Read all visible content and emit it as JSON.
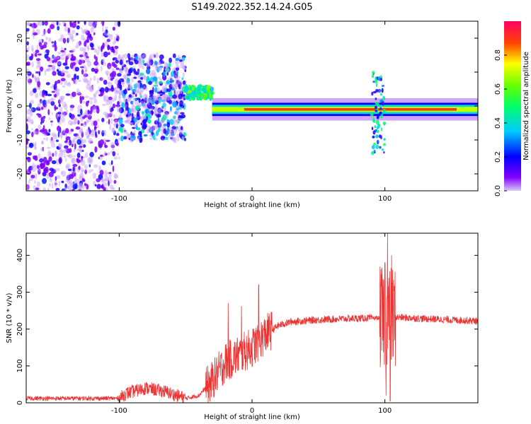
{
  "title": "S149.2022.352.14.24.G05",
  "colors": {
    "snr_line": "#ee3333",
    "spectrogram_low": "#cc99ff",
    "spectrogram_mid": "#00ddaa",
    "spectrogram_high": "#ff2222"
  },
  "chart_data": [
    {
      "type": "heatmap",
      "name": "spectrogram",
      "xlabel": "Height of straight line (km)",
      "ylabel": "Frequency (Hz)",
      "xlim": [
        -170,
        170
      ],
      "ylim": [
        -25,
        25
      ],
      "xticks": [
        -100,
        0,
        100
      ],
      "yticks": [
        -20,
        -10,
        0,
        10,
        20
      ],
      "colorbar": {
        "label": "Normalized spectral amplitude",
        "range": [
          0.0,
          1.0
        ],
        "ticks": [
          0.0,
          0.2,
          0.4,
          0.6,
          0.8
        ],
        "colormap": "hsv-rainbow (magenta-violet-blue-cyan-green-yellow-red)"
      },
      "features": [
        {
          "x_range": [
            -170,
            -100
          ],
          "freq_range": [
            -25,
            25
          ],
          "amplitude": 0.15,
          "pattern": "scattered"
        },
        {
          "x_range": [
            -100,
            -50
          ],
          "freq_range": [
            -10,
            15
          ],
          "amplitude": 0.3,
          "pattern": "scattered-dense"
        },
        {
          "x_range": [
            -50,
            -30
          ],
          "freq_range": [
            2,
            6
          ],
          "amplitude": 0.55,
          "pattern": "band"
        },
        {
          "x_range": [
            -30,
            170
          ],
          "freq_center": -1,
          "freq_halfwidth": 1.5,
          "amplitude": 0.9,
          "pattern": "narrow-band"
        },
        {
          "x_range": [
            90,
            100
          ],
          "freq_range": [
            -14,
            10
          ],
          "amplitude": 0.4,
          "pattern": "vertical-burst"
        }
      ]
    },
    {
      "type": "line",
      "name": "snr",
      "xlabel": "Height of straight line (km)",
      "ylabel": "SNR (10 * v/v)",
      "xlim": [
        -170,
        170
      ],
      "ylim": [
        0,
        460
      ],
      "xticks": [
        -100,
        0,
        100
      ],
      "yticks": [
        0,
        100,
        200,
        300,
        400
      ],
      "profile": [
        {
          "x": -170,
          "y": 12
        },
        {
          "x": -100,
          "y": 12
        },
        {
          "x": -95,
          "y": 25
        },
        {
          "x": -80,
          "y": 40
        },
        {
          "x": -65,
          "y": 30
        },
        {
          "x": -50,
          "y": 12
        },
        {
          "x": -40,
          "y": 20
        },
        {
          "x": -30,
          "y": 60
        },
        {
          "x": -20,
          "y": 110
        },
        {
          "x": -10,
          "y": 130
        },
        {
          "x": 0,
          "y": 150
        },
        {
          "x": 10,
          "y": 185
        },
        {
          "x": 20,
          "y": 210
        },
        {
          "x": 30,
          "y": 220
        },
        {
          "x": 50,
          "y": 225
        },
        {
          "x": 70,
          "y": 228
        },
        {
          "x": 90,
          "y": 230
        },
        {
          "x": 100,
          "y": 230
        },
        {
          "x": 110,
          "y": 232
        },
        {
          "x": 130,
          "y": 228
        },
        {
          "x": 150,
          "y": 225
        },
        {
          "x": 170,
          "y": 222
        }
      ],
      "spikes": [
        {
          "x": -18,
          "y": 270
        },
        {
          "x": -8,
          "y": 262
        },
        {
          "x": 5,
          "y": 320
        },
        {
          "x": 100,
          "y": 380
        },
        {
          "x": 102,
          "y": 460
        },
        {
          "x": 105,
          "y": 400
        },
        {
          "x": 100.8,
          "y": 20
        },
        {
          "x": 104,
          "y": 5
        }
      ]
    }
  ]
}
